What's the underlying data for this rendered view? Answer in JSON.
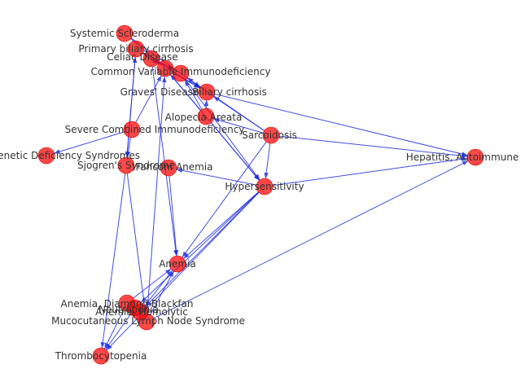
{
  "colors": {
    "node": "#ff0000",
    "edge": "#1f2ee0",
    "label": "#333333"
  },
  "nodes": [
    {
      "id": "systemic-scleroderma",
      "label": "Systemic Scleroderma"
    },
    {
      "id": "primary-biliary-cirrhosis",
      "label": "Primary biliary cirrhosis"
    },
    {
      "id": "celiac-disease",
      "label": "Celiac Disease"
    },
    {
      "id": "cvid",
      "label": "Common Variable Immunodeficiency"
    },
    {
      "id": "graves-disease",
      "label": "Graves' Disease"
    },
    {
      "id": "biliary-cirrhosis",
      "label": "Biliary cirrhosis"
    },
    {
      "id": "alopecia-areata",
      "label": "Alopecia Areata"
    },
    {
      "id": "scid",
      "label": "Severe Combined Immunodeficiency"
    },
    {
      "id": "sarcoidosis",
      "label": "Sarcoidosis"
    },
    {
      "id": "genetic-deficiency",
      "label": "Genetic Deficiency Syndromes"
    },
    {
      "id": "sjogren",
      "label": "Sjogren's Syndrome"
    },
    {
      "id": "fanconi-anemia",
      "label": "Fanconi Anemia"
    },
    {
      "id": "hepatitis-autoimmune",
      "label": "Hepatitis, Autoimmune"
    },
    {
      "id": "hypersensitivity",
      "label": "Hypersensitivity"
    },
    {
      "id": "anemia",
      "label": "Anemia"
    },
    {
      "id": "anemia-diamond-blackfan",
      "label": "Anemia, Diamond-Blackfan"
    },
    {
      "id": "anemia-hemolytic",
      "label": "Anemia, Hemolytic"
    },
    {
      "id": "neutropenia",
      "label": "Neutropenia"
    },
    {
      "id": "kawasaki",
      "label": "Mucocutaneous Lymph Node Syndrome"
    },
    {
      "id": "thrombocytopenia",
      "label": "Thrombocytopenia"
    }
  ],
  "edges": [
    [
      "systemic-scleroderma",
      "cvid"
    ],
    [
      "systemic-scleroderma",
      "biliary-cirrhosis"
    ],
    [
      "primary-biliary-cirrhosis",
      "cvid"
    ],
    [
      "primary-biliary-cirrhosis",
      "graves-disease"
    ],
    [
      "celiac-disease",
      "graves-disease"
    ],
    [
      "celiac-disease",
      "biliary-cirrhosis"
    ],
    [
      "cvid",
      "biliary-cirrhosis"
    ],
    [
      "graves-disease",
      "biliary-cirrhosis"
    ],
    [
      "alopecia-areata",
      "graves-disease"
    ],
    [
      "alopecia-areata",
      "cvid"
    ],
    [
      "alopecia-areata",
      "biliary-cirrhosis"
    ],
    [
      "alopecia-areata",
      "hypersensitivity"
    ],
    [
      "sarcoidosis",
      "biliary-cirrhosis"
    ],
    [
      "sarcoidosis",
      "alopecia-areata"
    ],
    [
      "sarcoidosis",
      "graves-disease"
    ],
    [
      "sarcoidosis",
      "hypersensitivity"
    ],
    [
      "sarcoidosis",
      "hepatitis-autoimmune"
    ],
    [
      "sarcoidosis",
      "anemia"
    ],
    [
      "scid",
      "genetic-deficiency"
    ],
    [
      "scid",
      "cvid"
    ],
    [
      "scid",
      "sjogren"
    ],
    [
      "biliary-cirrhosis",
      "hepatitis-autoimmune"
    ],
    [
      "graves-disease",
      "hypersensitivity"
    ],
    [
      "cvid",
      "hypersensitivity"
    ],
    [
      "hypersensitivity",
      "fanconi-anemia"
    ],
    [
      "hypersensitivity",
      "hepatitis-autoimmune"
    ],
    [
      "hypersensitivity",
      "anemia"
    ],
    [
      "hypersensitivity",
      "neutropenia"
    ],
    [
      "hypersensitivity",
      "anemia-hemolytic"
    ],
    [
      "hypersensitivity",
      "thrombocytopenia"
    ],
    [
      "fanconi-anemia",
      "anemia"
    ],
    [
      "sjogren",
      "primary-biliary-cirrhosis"
    ],
    [
      "sjogren",
      "thrombocytopenia"
    ],
    [
      "sjogren",
      "kawasaki"
    ],
    [
      "kawasaki",
      "cvid"
    ],
    [
      "kawasaki",
      "anemia"
    ],
    [
      "kawasaki",
      "hepatitis-autoimmune"
    ],
    [
      "anemia-diamond-blackfan",
      "thrombocytopenia"
    ],
    [
      "anemia-diamond-blackfan",
      "anemia"
    ],
    [
      "anemia-hemolytic",
      "anemia"
    ],
    [
      "neutropenia",
      "thrombocytopenia"
    ],
    [
      "celiac-disease",
      "anemia"
    ],
    [
      "primary-biliary-cirrhosis",
      "sjogren"
    ]
  ]
}
